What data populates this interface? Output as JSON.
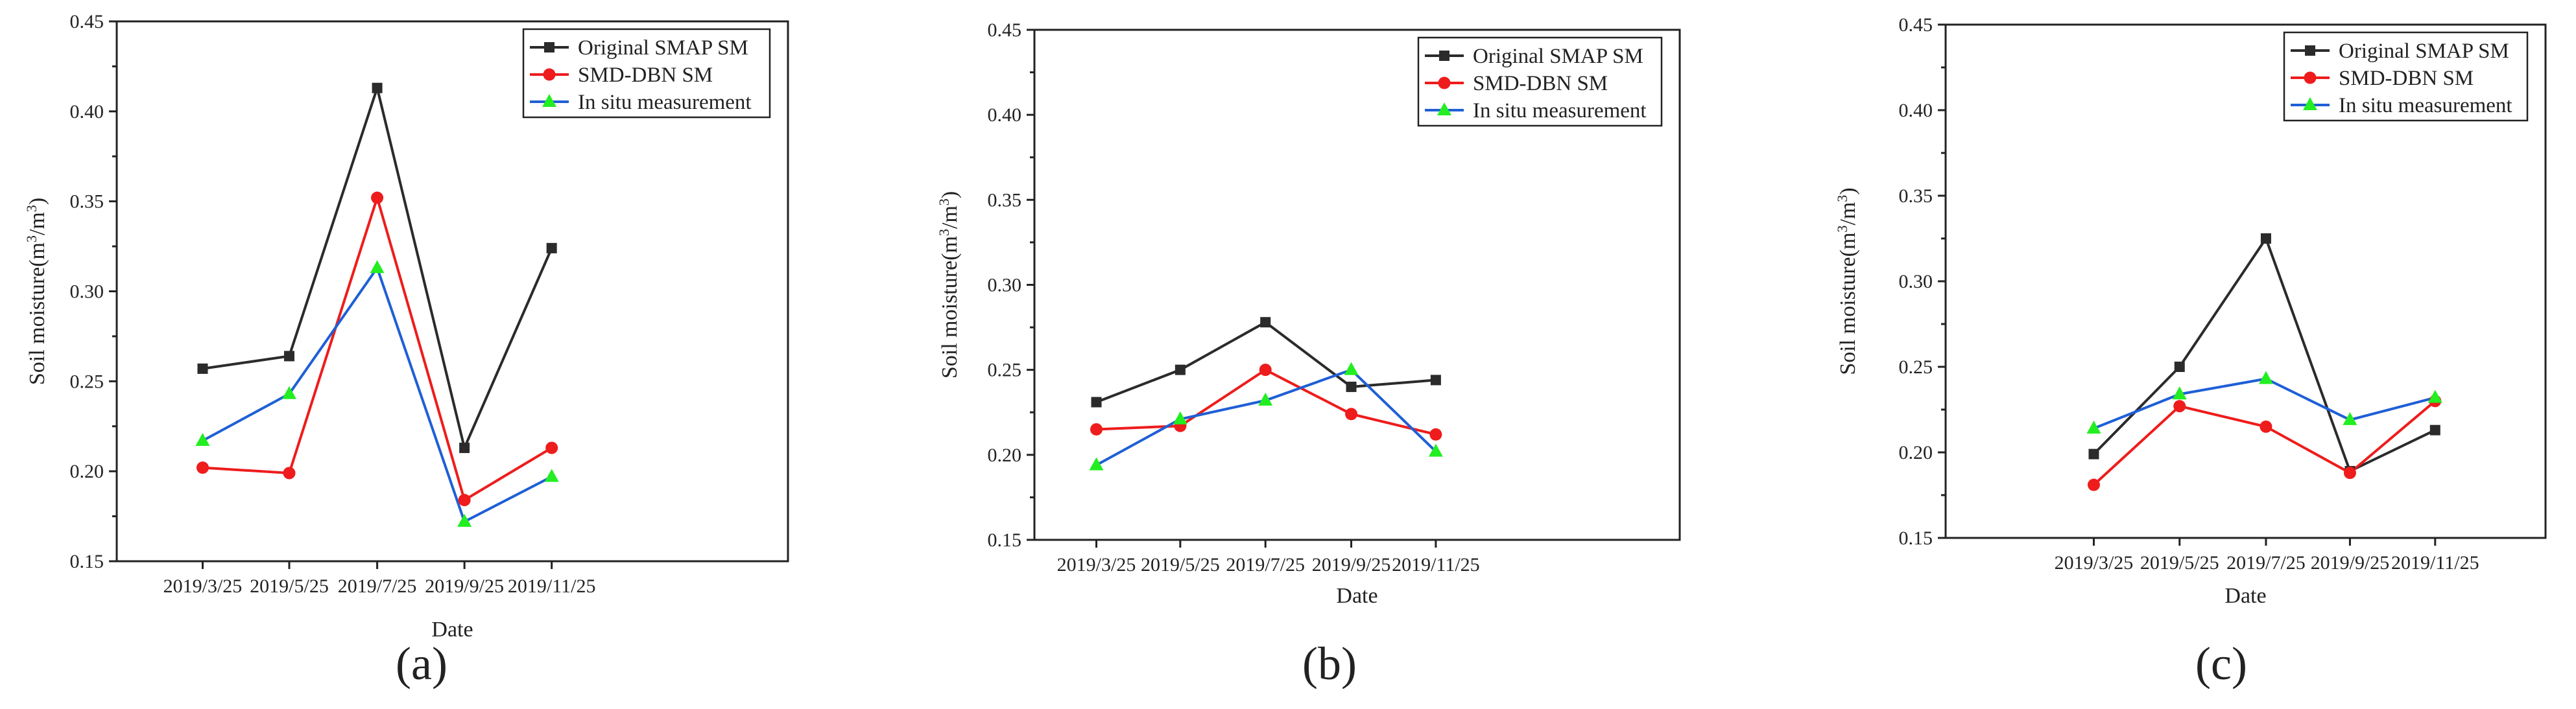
{
  "colors": {
    "original": "#2b2b2b",
    "dbn": "#ee1c1c",
    "insitu_line": "#1f5fd6",
    "insitu_marker": "#22ee22"
  },
  "chart_data": [
    {
      "type": "line",
      "panel_label": "(a)",
      "xlabel": "Date",
      "ylabel": "Soil moisture(m³/m³)",
      "ylabel_parts": [
        "Soil moisture(m",
        "3",
        "/m",
        "3",
        ")"
      ],
      "ylim": [
        0.15,
        0.45
      ],
      "yticks": [
        "0.15",
        "0.20",
        "0.25",
        "0.30",
        "0.35",
        "0.40",
        "0.45"
      ],
      "categories": [
        "2019/3/25",
        "2019/5/25",
        "2019/7/25",
        "2019/9/25",
        "2019/11/25"
      ],
      "legend_position": "top-right",
      "series": [
        {
          "name": "Original SMAP SM",
          "marker": "square",
          "values": [
            0.257,
            0.264,
            0.413,
            0.213,
            0.324
          ]
        },
        {
          "name": "SMD-DBN SM",
          "marker": "circle",
          "values": [
            0.202,
            0.199,
            0.352,
            0.184,
            0.213
          ]
        },
        {
          "name": "In situ measurement",
          "marker": "triangle",
          "values": [
            0.217,
            0.243,
            0.313,
            0.172,
            0.197
          ]
        }
      ]
    },
    {
      "type": "line",
      "panel_label": "(b)",
      "xlabel": "Date",
      "ylabel": "Soil moisture(m³/m³)",
      "ylabel_parts": [
        "Soil moisture(m",
        "3",
        "/m",
        "3",
        ")"
      ],
      "ylim": [
        0.15,
        0.45
      ],
      "yticks": [
        "0.15",
        "0.20",
        "0.25",
        "0.30",
        "0.35",
        "0.40",
        "0.45"
      ],
      "categories": [
        "2019/3/25",
        "2019/5/25",
        "2019/7/25",
        "2019/9/25",
        "2019/11/25"
      ],
      "legend_position": "top-right",
      "series": [
        {
          "name": "Original SMAP SM",
          "marker": "square",
          "values": [
            0.231,
            0.25,
            0.278,
            0.24,
            0.244
          ]
        },
        {
          "name": "SMD-DBN SM",
          "marker": "circle",
          "values": [
            0.215,
            0.217,
            0.25,
            0.224,
            0.212
          ]
        },
        {
          "name": "In situ measurement",
          "marker": "triangle",
          "values": [
            0.194,
            0.221,
            0.232,
            0.25,
            0.202
          ]
        }
      ]
    },
    {
      "type": "line",
      "panel_label": "(c)",
      "xlabel": "Date",
      "ylabel": "Soil moisture(m³/m³)",
      "ylabel_parts": [
        "Soil moisture(m",
        "3",
        "/m",
        "3",
        ")"
      ],
      "ylim": [
        0.15,
        0.45
      ],
      "yticks": [
        "0.15",
        "0.20",
        "0.25",
        "0.30",
        "0.35",
        "0.40",
        "0.45"
      ],
      "categories": [
        "2019/3/25",
        "2019/5/25",
        "2019/7/25",
        "2019/9/25",
        "2019/11/25"
      ],
      "legend_position": "top-right",
      "series": [
        {
          "name": "Original SMAP SM",
          "marker": "square",
          "values": [
            0.199,
            0.25,
            0.325,
            0.189,
            0.213
          ]
        },
        {
          "name": "SMD-DBN SM",
          "marker": "circle",
          "values": [
            0.181,
            0.227,
            0.215,
            0.188,
            0.23
          ]
        },
        {
          "name": "In situ measurement",
          "marker": "triangle",
          "values": [
            0.214,
            0.234,
            0.243,
            0.219,
            0.232
          ]
        }
      ]
    }
  ]
}
